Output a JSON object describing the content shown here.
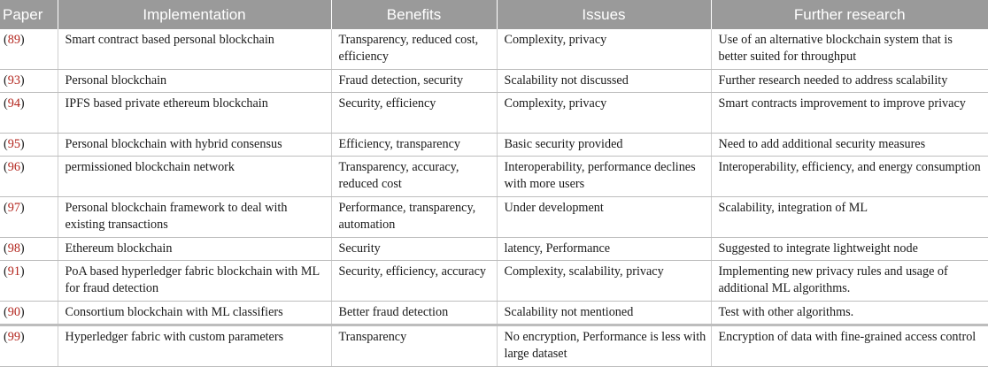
{
  "table": {
    "headers": [
      "Paper",
      "Implementation",
      "Benefits",
      "Issues",
      "Further research"
    ],
    "rows": [
      {
        "ref": "89",
        "implementation": "Smart contract based personal blockchain",
        "benefits": "Transparency, reduced cost, efficiency",
        "issues": "Complexity, privacy",
        "further": "Use of an alternative blockchain system that is better suited for throughput"
      },
      {
        "ref": "93",
        "implementation": "Personal blockchain",
        "benefits": "Fraud detection, security",
        "issues": "Scalability not discussed",
        "further": "Further research needed to address scalability"
      },
      {
        "ref": "94",
        "implementation": "IPFS based private ethereum blockchain",
        "benefits": "Security, efficiency",
        "issues": "Complexity, privacy",
        "further": "Smart contracts improvement to improve privacy"
      },
      {
        "ref": "95",
        "implementation": "Personal blockchain with hybrid consensus",
        "benefits": "Efficiency, transparency",
        "issues": "Basic security provided",
        "further": "Need to add additional security measures"
      },
      {
        "ref": "96",
        "implementation": "permissioned blockchain network",
        "benefits": "Transparency, accuracy, reduced cost",
        "issues": "Interoperability, performance declines with more users",
        "further": "Interoperability, efficiency, and energy consumption"
      },
      {
        "ref": "97",
        "implementation": "Personal blockchain framework to deal with existing transactions",
        "benefits": "Performance, transparency, automation",
        "issues": "Under development",
        "further": "Scalability, integration of ML"
      },
      {
        "ref": "98",
        "implementation": "Ethereum blockchain",
        "benefits": "Security",
        "issues": "latency, Performance",
        "further": "Suggested to integrate lightweight node"
      },
      {
        "ref": "91",
        "implementation": "PoA based hyperledger fabric blockchain with ML for fraud detection",
        "benefits": "Security, efficiency, accuracy",
        "issues": "Complexity, scalability, privacy",
        "further": "Implementing new privacy rules and usage of additional ML algorithms."
      },
      {
        "ref": "90",
        "implementation": "Consortium blockchain with ML classifiers",
        "benefits": "Better fraud detection",
        "issues": "Scalability not mentioned",
        "further": "Test with other algorithms."
      },
      {
        "ref": "99",
        "implementation": "Hyperledger fabric with custom parameters",
        "benefits": "Transparency",
        "issues": "No encryption, Performance is less with large dataset",
        "further": "Encryption of data with fine-grained access control"
      }
    ]
  }
}
